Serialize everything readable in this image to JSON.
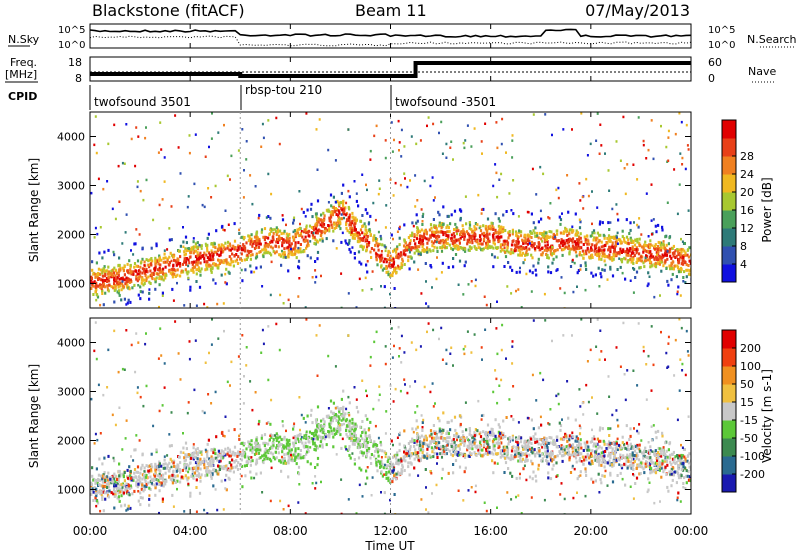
{
  "header": {
    "station": "Blackstone (fitACF)",
    "beam": "Beam 11",
    "date": "07/May/2013"
  },
  "noise_panel": {
    "left_label": "N.Sky",
    "right_label": "N.Search",
    "tick_top": "10^5",
    "tick_bottom": "10^0"
  },
  "freq_panel": {
    "left_label_1": "Freq.",
    "left_label_2": "[MHz]",
    "right_label": "Nave",
    "left_ticks": [
      "18",
      "8"
    ],
    "right_ticks": [
      "60",
      "0"
    ]
  },
  "cpid": {
    "label": "CPID",
    "segments": [
      {
        "start": 0,
        "end": 6,
        "name": "twofsound 3501"
      },
      {
        "start": 6,
        "end": 12,
        "name": "rbsp-tou 210"
      },
      {
        "start": 12,
        "end": 24,
        "name": "twofsound -3501"
      }
    ]
  },
  "power_colorbar": {
    "label": "Power [dB]",
    "ticks": [
      "4",
      "8",
      "12",
      "16",
      "20",
      "24",
      "28"
    ],
    "colors": [
      "#1010e0",
      "#3050b0",
      "#2e7a78",
      "#4aa05a",
      "#a8c830",
      "#f0b820",
      "#f08020",
      "#e84018",
      "#e00000"
    ]
  },
  "velocity_colorbar": {
    "label": "Velocity [m s-1]",
    "ticks": [
      "200",
      "100",
      "50",
      "15",
      "-15",
      "-50",
      "-100",
      "-200"
    ],
    "colors": [
      "#1a1ab0",
      "#2a6a90",
      "#3c8a50",
      "#5cc838",
      "#c8c8c8",
      "#f0c040",
      "#f09020",
      "#f04010",
      "#e00000"
    ]
  },
  "chart_data": [
    {
      "type": "heatmap",
      "name": "power",
      "ylabel": "Slant Range [km]",
      "xlim": [
        0,
        24
      ],
      "ylim": [
        500,
        4500
      ],
      "yticks": [
        1000,
        2000,
        3000,
        4000
      ],
      "band_center_hours": [
        0,
        1,
        2,
        3,
        4,
        5,
        6,
        7,
        8,
        9,
        10,
        11,
        12,
        13,
        14,
        15,
        16,
        17,
        18,
        19,
        20,
        21,
        22,
        23,
        24
      ],
      "band_center_km": [
        1050,
        1120,
        1250,
        1380,
        1500,
        1600,
        1700,
        1900,
        1800,
        2100,
        2500,
        1900,
        1400,
        1900,
        2000,
        1950,
        2000,
        1850,
        1800,
        1900,
        1750,
        1750,
        1650,
        1600,
        1450
      ]
    },
    {
      "type": "heatmap",
      "name": "velocity",
      "ylabel": "Slant Range [km]",
      "xlabel": "Time UT",
      "xlim": [
        0,
        24
      ],
      "ylim": [
        500,
        4500
      ],
      "yticks": [
        1000,
        2000,
        3000,
        4000
      ],
      "xticks": [
        "00:00",
        "04:00",
        "08:00",
        "12:00",
        "16:00",
        "20:00",
        "00:00"
      ]
    }
  ]
}
